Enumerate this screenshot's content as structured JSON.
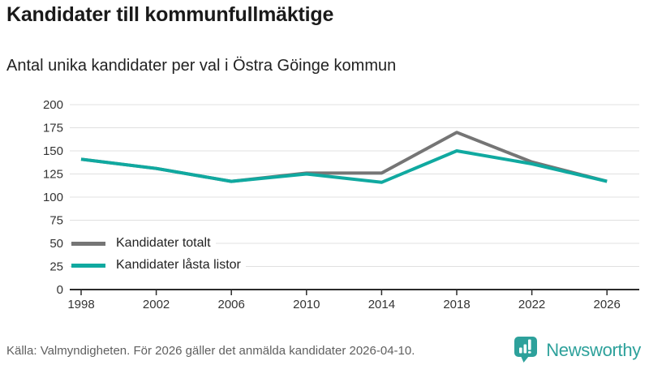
{
  "header": {
    "title": "Kandidater till kommunfullmäktige",
    "subtitle": "Antal unika kandidater per val i Östra Göinge kommun"
  },
  "chart_data": {
    "type": "line",
    "title": "Kandidater till kommunfullmäktige",
    "subtitle": "Antal unika kandidater per val i Östra Göinge kommun",
    "categories": [
      "1998",
      "2002",
      "2006",
      "2010",
      "2014",
      "2018",
      "2022",
      "2026"
    ],
    "series": [
      {
        "name": "Kandidater totalt",
        "color": "#757575",
        "values": [
          141,
          131,
          117,
          126,
          126,
          170,
          138,
          117
        ]
      },
      {
        "name": "Kandidater låsta listor",
        "color": "#10a9a0",
        "values": [
          141,
          131,
          117,
          125,
          116,
          150,
          136,
          117
        ]
      }
    ],
    "ylim": [
      0,
      200
    ],
    "ytick_step": 25,
    "grid": true,
    "legend_position": "inside-lower-left",
    "colors": {
      "gridline": "#e0e0e0",
      "axis": "#2b2b2b",
      "tick_label": "#333333"
    }
  },
  "footer": {
    "source": "Källa: Valmyndigheten. För 2026 gäller det anmälda kandidater 2026-04-10.",
    "brand": "Newsworthy",
    "brand_color": "#2da19b"
  }
}
